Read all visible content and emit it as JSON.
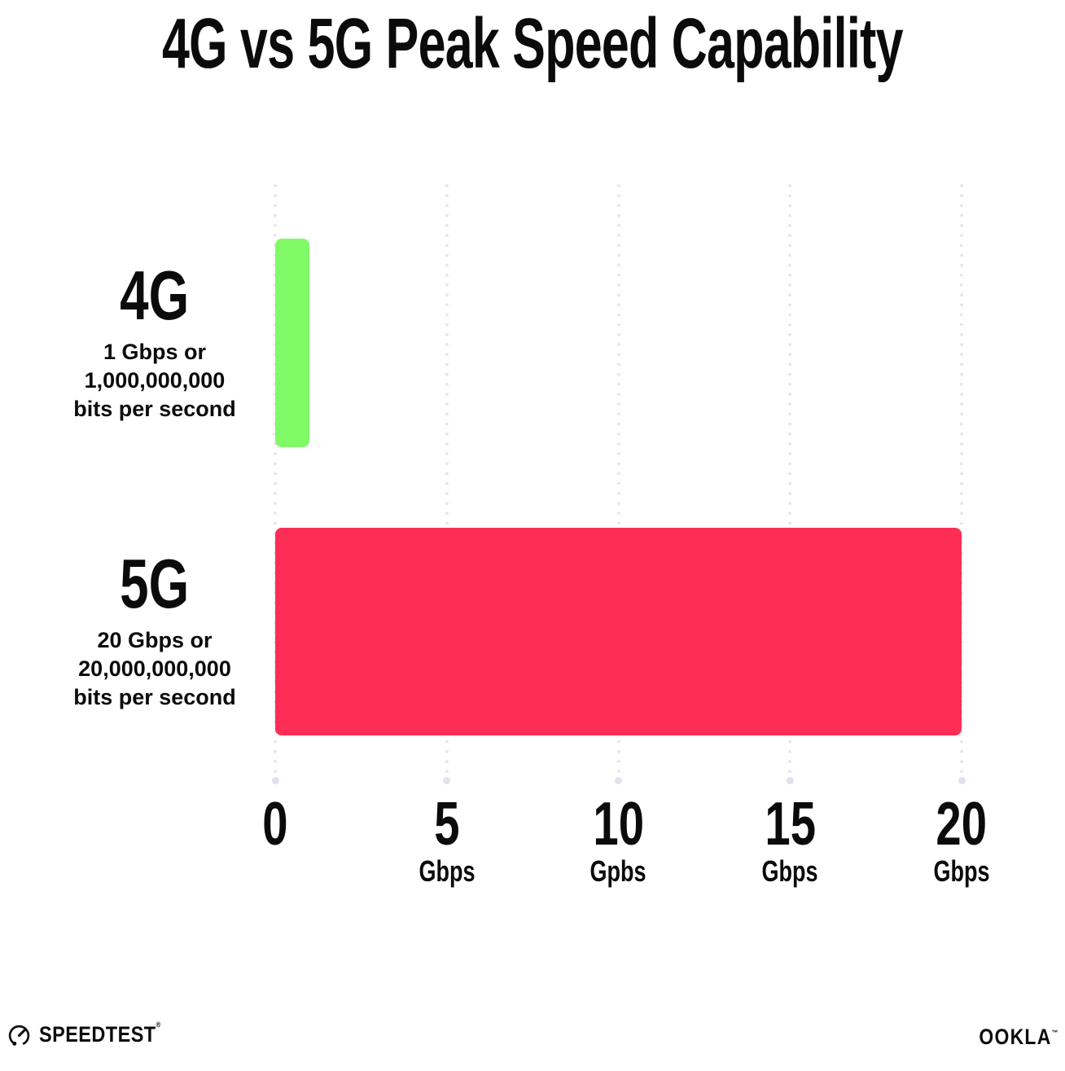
{
  "title": "4G vs 5G Peak Speed Capability",
  "chart_data": {
    "type": "bar",
    "orientation": "horizontal",
    "title": "4G vs 5G Peak Speed Capability",
    "categories": [
      "4G",
      "5G"
    ],
    "values": [
      1,
      20
    ],
    "value_unit": "Gbps",
    "category_sublabels": [
      [
        "1 Gbps or",
        "1,000,000,000",
        "bits per second"
      ],
      [
        "20 Gbps or",
        "20,000,000,000",
        "bits per second"
      ]
    ],
    "x_ticks": [
      {
        "value": 0,
        "unit": ""
      },
      {
        "value": 5,
        "unit": "Gbps"
      },
      {
        "value": 10,
        "unit": "Gpbs"
      },
      {
        "value": 15,
        "unit": "Gbps"
      },
      {
        "value": 20,
        "unit": "Gbps"
      }
    ],
    "xlim": [
      0,
      20
    ],
    "grid": "dotted vertical gridlines",
    "legend": "none",
    "bar_colors": [
      "#80FA66",
      "#FD2D55"
    ]
  },
  "colors": {
    "bar_4g": "#80FA66",
    "bar_5g": "#FD2D55",
    "grid_dot": "#E3E5EF",
    "grid_end_dot": "#DFE2EC",
    "text": "#0B0B0B",
    "background": "#FFFFFF"
  },
  "footer": {
    "speedtest_label": "SPEEDTEST",
    "speedtest_trademark": "®",
    "ookla_label": "OOKLA",
    "ookla_trademark": "™"
  }
}
